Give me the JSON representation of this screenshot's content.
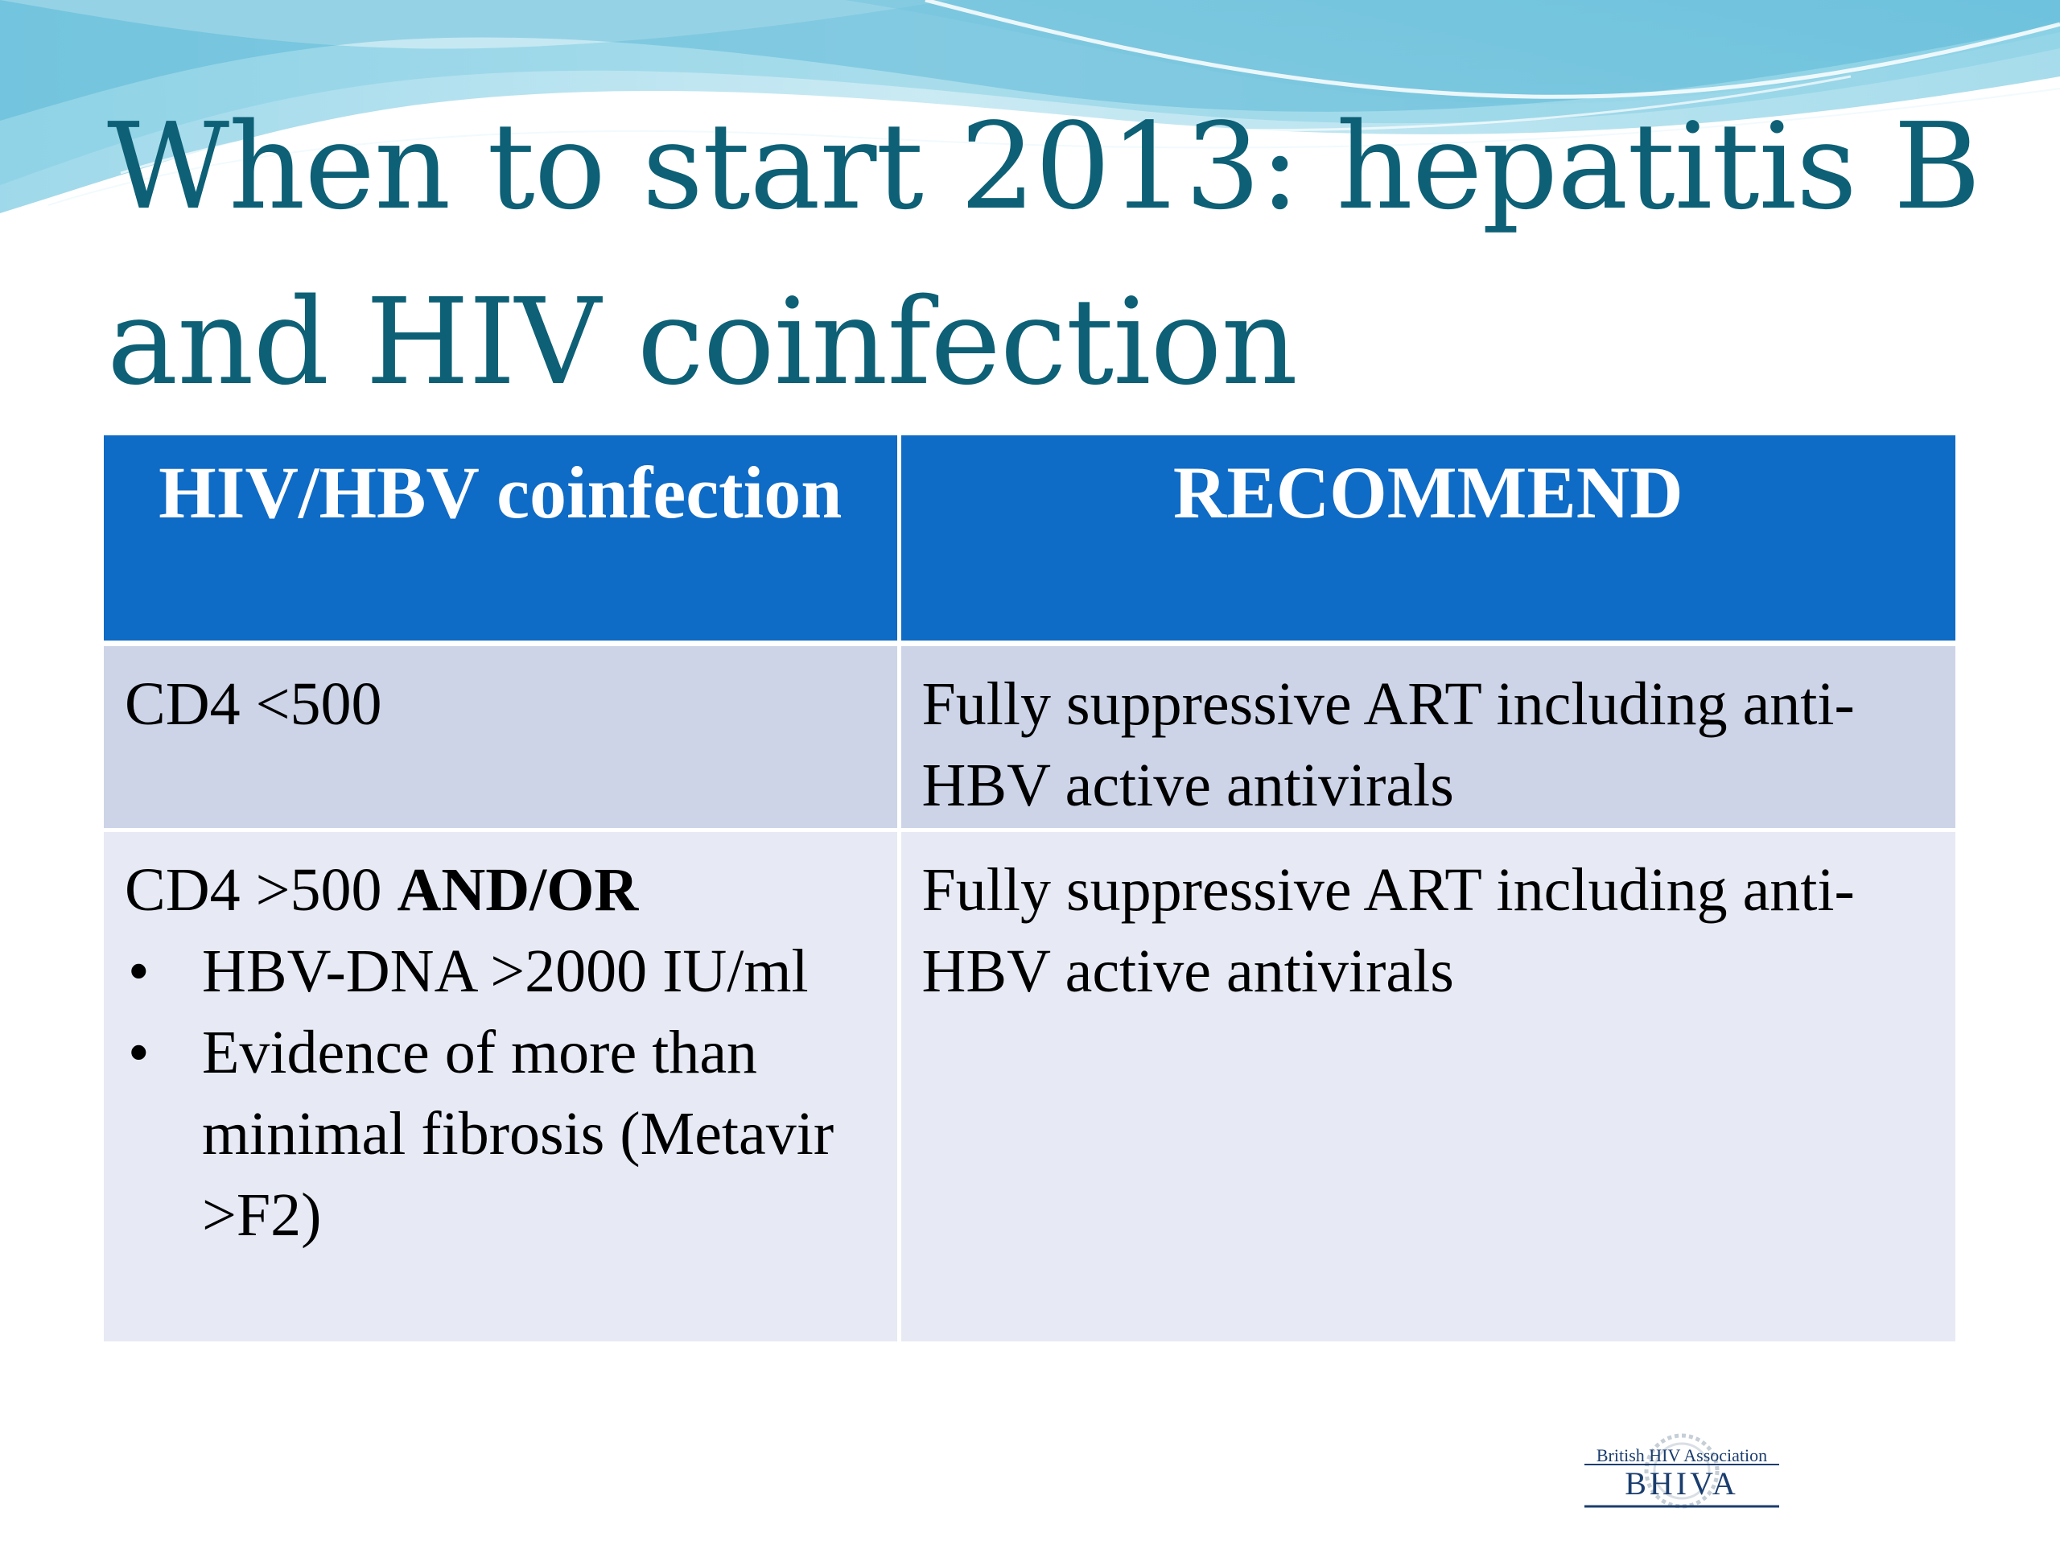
{
  "slide": {
    "title": "When to start 2013: hepatitis B and HIV coinfection"
  },
  "table": {
    "headers": {
      "col1": "HIV/HBV coinfection",
      "col2": "RECOMMEND"
    },
    "rows": [
      {
        "condition": "CD4 <500",
        "recommendation": "Fully suppressive ART including anti-HBV active antivirals"
      },
      {
        "condition_prefix": "CD4 >500 ",
        "condition_bold": "AND/OR",
        "bullets": [
          "HBV-DNA >2000 IU/ml",
          "Evidence of more than minimal fibrosis (Metavir >F2)"
        ],
        "bullet_symbol": "•",
        "recommendation": "Fully suppressive ART including anti-HBV active antivirals"
      }
    ]
  },
  "logo": {
    "line1": "British HIV Association",
    "line2": "BHIVA",
    "icon": "bhiva-crest-icon"
  },
  "colors": {
    "title": "#0d6075",
    "header_bg": "#0e6bc6",
    "row_odd_bg": "#cdd4e8",
    "row_even_bg": "#e7eaf4",
    "wave_light": "#c9ecf2",
    "wave_mid": "#6cc4da",
    "wave_dark": "#2f9fc4"
  }
}
